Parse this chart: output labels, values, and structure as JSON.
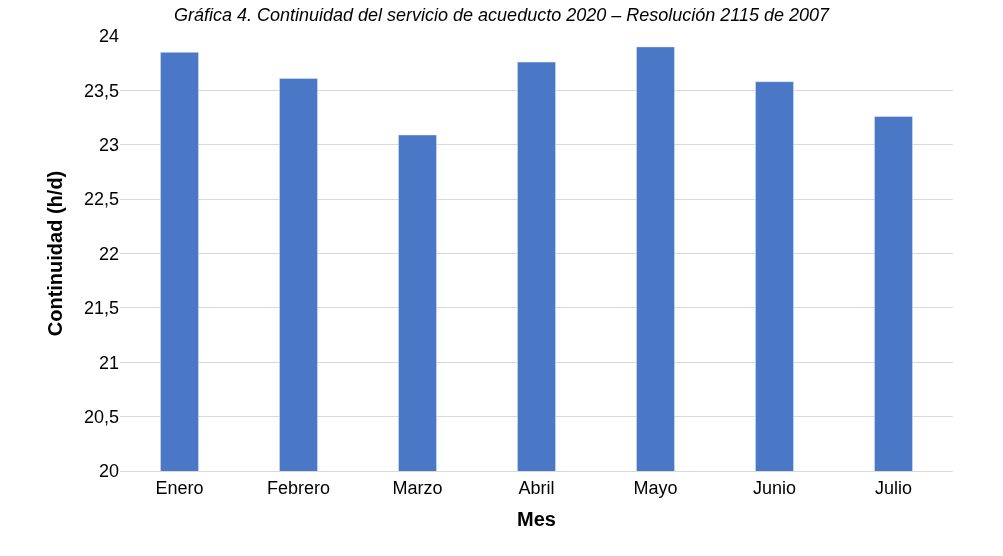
{
  "chart_data": {
    "type": "bar",
    "title": "Gráfica 4. Continuidad del servicio de acueducto 2020 – Resolución 2115 de 2007",
    "xlabel": "Mes",
    "ylabel": "Continuidad (h/d)",
    "categories": [
      "Enero",
      "Febrero",
      "Marzo",
      "Abril",
      "Mayo",
      "Junio",
      "Julio"
    ],
    "values": [
      23.85,
      23.61,
      23.09,
      23.76,
      23.9,
      23.58,
      23.26
    ],
    "color": "#4a78c6",
    "ylim": [
      20,
      24
    ],
    "yticks": [
      20,
      {
        "value": 20.5,
        "label": "20,5"
      },
      21,
      {
        "value": 21.5,
        "label": "21,5"
      },
      22,
      {
        "value": 22.5,
        "label": "22,5"
      },
      23,
      {
        "value": 23.5,
        "label": "23,5"
      },
      24
    ],
    "grid": "y"
  }
}
